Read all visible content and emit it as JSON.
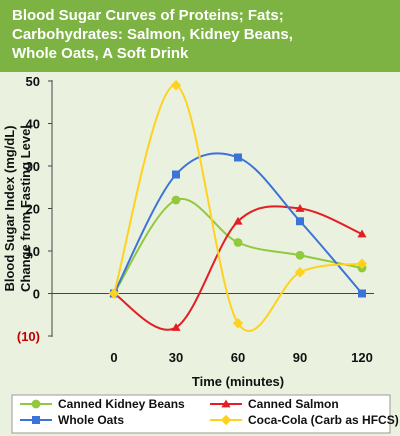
{
  "title": "Blood Sugar Curves of Proteins; Fats;\nCarbohydrates:  Salmon, Kidney Beans,\nWhole Oats, A Soft Drink",
  "colors": {
    "title_bg": "#7cb342",
    "panel_bg": "#eaf2df"
  },
  "chart_data": {
    "type": "line",
    "title": "Blood Sugar Curves of Proteins; Fats; Carbohydrates:  Salmon, Kidney Beans, Whole Oats, A Soft Drink",
    "xlabel": "Time (minutes)",
    "ylabel": "Blood Sugar Index (mg/dL)\nChange from Fasting Level",
    "x": [
      0,
      30,
      60,
      90,
      120
    ],
    "xticks": [
      "0",
      "30",
      "60",
      "90",
      "120"
    ],
    "ylim": [
      -10,
      50
    ],
    "yticks": [
      {
        "value": 50,
        "label": "50"
      },
      {
        "value": 40,
        "label": "40"
      },
      {
        "value": 30,
        "label": "30"
      },
      {
        "value": 20,
        "label": "20"
      },
      {
        "value": 10,
        "label": "10"
      },
      {
        "value": 0,
        "label": "0"
      },
      {
        "value": -10,
        "label": "(10)"
      }
    ],
    "grid": false,
    "legend": "bottom",
    "series": [
      {
        "name": "Canned Kidney Beans",
        "values": [
          0,
          22,
          12,
          9,
          6
        ],
        "color": "#92c83e",
        "marker": "circle"
      },
      {
        "name": "Canned Salmon",
        "values": [
          0,
          -8,
          17,
          20,
          14
        ],
        "color": "#e31e24",
        "marker": "triangle"
      },
      {
        "name": "Whole Oats",
        "values": [
          0,
          28,
          32,
          17,
          0
        ],
        "color": "#3b73d9",
        "marker": "square"
      },
      {
        "name": "Coca-Cola (Carb as HFCS)",
        "values": [
          0,
          49,
          -7,
          5,
          7
        ],
        "color": "#ffd21f",
        "marker": "diamond"
      }
    ]
  }
}
